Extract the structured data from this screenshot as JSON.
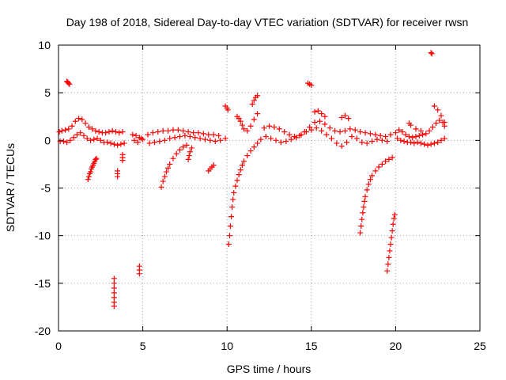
{
  "chart_data": {
    "type": "scatter",
    "title": "Day 198 of 2018, Sidereal Day-to-day VTEC variation (SDTVAR) for receiver rwsn",
    "xlabel": "GPS time / hours",
    "ylabel": "SDTVAR / TECUs",
    "xlim": [
      0,
      25
    ],
    "ylim": [
      -20,
      10
    ],
    "x_ticks": [
      0,
      5,
      10,
      15,
      20,
      25
    ],
    "y_ticks": [
      -20,
      -15,
      -10,
      -5,
      0,
      5,
      10
    ],
    "x_tick_labels": [
      "0",
      "5",
      "10",
      "15",
      "20",
      "25"
    ],
    "y_tick_labels": [
      "-20",
      "-15",
      "-10",
      "-5",
      "0",
      "5",
      "10"
    ],
    "grid": true,
    "marker": "+",
    "series": [
      {
        "name": "SDTVAR",
        "color": "#ff0000",
        "points": [
          [
            0.05,
            0.9
          ],
          [
            0.2,
            1.0
          ],
          [
            0.4,
            1.1
          ],
          [
            0.6,
            1.2
          ],
          [
            0.8,
            1.5
          ],
          [
            1.0,
            2.0
          ],
          [
            1.2,
            2.3
          ],
          [
            1.4,
            2.2
          ],
          [
            1.6,
            1.8
          ],
          [
            1.8,
            1.4
          ],
          [
            2.0,
            1.2
          ],
          [
            2.2,
            1.0
          ],
          [
            2.4,
            0.9
          ],
          [
            2.6,
            0.8
          ],
          [
            2.8,
            0.8
          ],
          [
            3.0,
            0.9
          ],
          [
            3.2,
            1.0
          ],
          [
            3.4,
            0.9
          ],
          [
            3.6,
            0.8
          ],
          [
            3.8,
            0.9
          ],
          [
            0.1,
            -0.1
          ],
          [
            0.3,
            -0.1
          ],
          [
            0.5,
            -0.2
          ],
          [
            0.7,
            0.0
          ],
          [
            0.9,
            0.3
          ],
          [
            1.1,
            0.6
          ],
          [
            1.3,
            0.8
          ],
          [
            1.5,
            0.5
          ],
          [
            1.7,
            0.2
          ],
          [
            1.9,
            0.0
          ],
          [
            2.1,
            0.1
          ],
          [
            2.3,
            0.2
          ],
          [
            2.5,
            0.0
          ],
          [
            2.7,
            -0.2
          ],
          [
            2.9,
            -0.2
          ],
          [
            3.1,
            -0.3
          ],
          [
            3.3,
            -0.4
          ],
          [
            3.5,
            -0.5
          ],
          [
            3.7,
            -0.4
          ],
          [
            3.9,
            -0.3
          ],
          [
            0.5,
            6.2
          ],
          [
            0.55,
            6.1
          ],
          [
            0.6,
            6.0
          ],
          [
            0.65,
            5.9
          ],
          [
            1.75,
            -4.1
          ],
          [
            1.8,
            -3.8
          ],
          [
            1.85,
            -3.5
          ],
          [
            1.9,
            -3.3
          ],
          [
            1.95,
            -3.0
          ],
          [
            2.0,
            -2.8
          ],
          [
            2.05,
            -2.6
          ],
          [
            2.1,
            -2.4
          ],
          [
            2.15,
            -2.2
          ],
          [
            2.2,
            -2.0
          ],
          [
            2.25,
            -1.9
          ],
          [
            3.5,
            -3.2
          ],
          [
            3.5,
            -3.5
          ],
          [
            3.5,
            -3.8
          ],
          [
            3.8,
            -1.8
          ],
          [
            3.8,
            -2.1
          ],
          [
            3.8,
            -1.5
          ],
          [
            3.3,
            -14.5
          ],
          [
            3.3,
            -15.0
          ],
          [
            3.3,
            -15.5
          ],
          [
            3.3,
            -16.0
          ],
          [
            3.3,
            -16.5
          ],
          [
            3.3,
            -17.0
          ],
          [
            3.3,
            -17.4
          ],
          [
            4.8,
            -13.2
          ],
          [
            4.8,
            -13.6
          ],
          [
            4.8,
            -14.0
          ],
          [
            4.4,
            0.6
          ],
          [
            4.6,
            0.5
          ],
          [
            4.8,
            0.3
          ],
          [
            5.0,
            0.1
          ],
          [
            4.5,
            0.0
          ],
          [
            4.7,
            -0.2
          ],
          [
            4.9,
            0.2
          ],
          [
            5.3,
            0.6
          ],
          [
            5.6,
            0.8
          ],
          [
            5.9,
            0.9
          ],
          [
            6.2,
            1.0
          ],
          [
            6.5,
            1.0
          ],
          [
            6.8,
            1.1
          ],
          [
            7.1,
            1.1
          ],
          [
            7.4,
            1.0
          ],
          [
            7.7,
            0.9
          ],
          [
            8.0,
            0.8
          ],
          [
            8.3,
            0.8
          ],
          [
            8.6,
            0.7
          ],
          [
            8.9,
            0.6
          ],
          [
            9.2,
            0.6
          ],
          [
            9.5,
            0.5
          ],
          [
            5.4,
            -0.3
          ],
          [
            5.7,
            -0.2
          ],
          [
            6.0,
            -0.1
          ],
          [
            6.3,
            0.0
          ],
          [
            6.6,
            0.2
          ],
          [
            6.9,
            0.3
          ],
          [
            7.2,
            0.4
          ],
          [
            7.5,
            0.5
          ],
          [
            7.8,
            0.4
          ],
          [
            8.1,
            0.3
          ],
          [
            8.4,
            0.2
          ],
          [
            8.7,
            0.1
          ],
          [
            9.0,
            0.0
          ],
          [
            9.3,
            -0.1
          ],
          [
            9.6,
            0.0
          ],
          [
            9.9,
            0.2
          ],
          [
            6.1,
            -4.9
          ],
          [
            6.2,
            -4.3
          ],
          [
            6.3,
            -3.8
          ],
          [
            6.4,
            -3.3
          ],
          [
            6.5,
            -2.9
          ],
          [
            6.6,
            -2.5
          ],
          [
            6.8,
            -1.9
          ],
          [
            7.0,
            -1.4
          ],
          [
            7.2,
            -1.0
          ],
          [
            7.4,
            -0.7
          ],
          [
            7.6,
            -0.5
          ],
          [
            7.7,
            -2.0
          ],
          [
            7.75,
            -1.6
          ],
          [
            7.8,
            -1.2
          ],
          [
            7.9,
            -0.8
          ],
          [
            8.9,
            -3.2
          ],
          [
            9.0,
            -3.0
          ],
          [
            9.1,
            -2.8
          ],
          [
            9.2,
            -2.6
          ],
          [
            9.9,
            3.6
          ],
          [
            10.0,
            3.4
          ],
          [
            10.05,
            3.2
          ],
          [
            10.1,
            -10.9
          ],
          [
            10.15,
            -10.0
          ],
          [
            10.2,
            -9.0
          ],
          [
            10.25,
            -8.0
          ],
          [
            10.3,
            -7.0
          ],
          [
            10.35,
            -6.2
          ],
          [
            10.4,
            -5.5
          ],
          [
            10.5,
            -4.8
          ],
          [
            10.6,
            -4.2
          ],
          [
            10.7,
            -3.6
          ],
          [
            10.8,
            -3.1
          ],
          [
            10.9,
            -2.6
          ],
          [
            11.0,
            -2.2
          ],
          [
            11.2,
            -1.6
          ],
          [
            11.4,
            -1.1
          ],
          [
            11.6,
            -0.7
          ],
          [
            11.8,
            -0.3
          ],
          [
            12.0,
            0.1
          ],
          [
            10.6,
            2.5
          ],
          [
            10.7,
            2.3
          ],
          [
            10.8,
            2.0
          ],
          [
            10.9,
            1.6
          ],
          [
            11.0,
            1.2
          ],
          [
            11.2,
            1.0
          ],
          [
            11.4,
            1.5
          ],
          [
            11.6,
            2.2
          ],
          [
            11.8,
            2.8
          ],
          [
            11.5,
            3.8
          ],
          [
            11.6,
            4.2
          ],
          [
            11.7,
            4.5
          ],
          [
            11.8,
            4.7
          ],
          [
            12.2,
            1.3
          ],
          [
            12.5,
            1.5
          ],
          [
            12.8,
            1.4
          ],
          [
            13.1,
            1.2
          ],
          [
            13.4,
            0.9
          ],
          [
            13.7,
            0.6
          ],
          [
            14.0,
            0.4
          ],
          [
            14.3,
            0.5
          ],
          [
            14.6,
            0.9
          ],
          [
            14.9,
            1.4
          ],
          [
            15.2,
            1.9
          ],
          [
            15.5,
            2.0
          ],
          [
            15.8,
            1.7
          ],
          [
            16.1,
            1.3
          ],
          [
            16.4,
            1.0
          ],
          [
            16.7,
            0.9
          ],
          [
            17.0,
            1.0
          ],
          [
            17.3,
            1.2
          ],
          [
            17.6,
            1.1
          ],
          [
            17.9,
            0.9
          ],
          [
            18.2,
            0.8
          ],
          [
            18.5,
            0.7
          ],
          [
            18.8,
            0.6
          ],
          [
            19.1,
            0.5
          ],
          [
            19.4,
            0.4
          ],
          [
            19.7,
            0.6
          ],
          [
            12.3,
            0.4
          ],
          [
            12.6,
            0.2
          ],
          [
            12.9,
            0.0
          ],
          [
            13.2,
            -0.2
          ],
          [
            13.5,
            -0.1
          ],
          [
            13.8,
            0.1
          ],
          [
            14.1,
            0.3
          ],
          [
            14.4,
            0.6
          ],
          [
            14.7,
            0.9
          ],
          [
            15.0,
            1.1
          ],
          [
            15.3,
            1.3
          ],
          [
            15.6,
            1.0
          ],
          [
            15.9,
            0.6
          ],
          [
            16.2,
            0.2
          ],
          [
            16.5,
            -0.3
          ],
          [
            16.8,
            -0.6
          ],
          [
            17.1,
            -0.2
          ],
          [
            17.4,
            0.4
          ],
          [
            17.7,
            0.2
          ],
          [
            18.0,
            -0.2
          ],
          [
            18.3,
            -0.3
          ],
          [
            18.6,
            -0.1
          ],
          [
            18.9,
            0.1
          ],
          [
            19.2,
            0.0
          ],
          [
            19.5,
            -0.1
          ],
          [
            14.8,
            6.0
          ],
          [
            14.9,
            5.9
          ],
          [
            15.0,
            5.8
          ],
          [
            15.2,
            3.0
          ],
          [
            15.4,
            3.1
          ],
          [
            15.6,
            2.8
          ],
          [
            15.8,
            2.5
          ],
          [
            16.8,
            2.4
          ],
          [
            17.0,
            2.6
          ],
          [
            17.2,
            2.3
          ],
          [
            17.9,
            -9.7
          ],
          [
            17.95,
            -9.0
          ],
          [
            18.0,
            -8.3
          ],
          [
            18.05,
            -7.6
          ],
          [
            18.1,
            -7.0
          ],
          [
            18.15,
            -6.4
          ],
          [
            18.2,
            -5.9
          ],
          [
            18.3,
            -5.2
          ],
          [
            18.4,
            -4.6
          ],
          [
            18.5,
            -4.1
          ],
          [
            18.6,
            -3.7
          ],
          [
            18.8,
            -3.2
          ],
          [
            19.0,
            -2.8
          ],
          [
            19.2,
            -2.5
          ],
          [
            19.4,
            -2.2
          ],
          [
            19.6,
            -2.0
          ],
          [
            19.8,
            -1.8
          ],
          [
            19.5,
            -13.7
          ],
          [
            19.55,
            -13.0
          ],
          [
            19.6,
            -12.3
          ],
          [
            19.65,
            -11.6
          ],
          [
            19.7,
            -10.9
          ],
          [
            19.75,
            -10.2
          ],
          [
            19.8,
            -9.5
          ],
          [
            19.85,
            -8.8
          ],
          [
            19.9,
            -8.2
          ],
          [
            19.95,
            -7.8
          ],
          [
            20.0,
            0.8
          ],
          [
            20.2,
            1.1
          ],
          [
            20.4,
            0.9
          ],
          [
            20.6,
            0.6
          ],
          [
            20.8,
            0.4
          ],
          [
            21.0,
            0.3
          ],
          [
            21.2,
            0.4
          ],
          [
            21.4,
            0.5
          ],
          [
            21.6,
            0.6
          ],
          [
            21.8,
            0.7
          ],
          [
            22.0,
            1.0
          ],
          [
            22.2,
            1.4
          ],
          [
            22.4,
            1.8
          ],
          [
            22.6,
            2.1
          ],
          [
            22.8,
            1.9
          ],
          [
            22.9,
            1.5
          ],
          [
            20.1,
            0.2
          ],
          [
            20.3,
            0.0
          ],
          [
            20.5,
            -0.1
          ],
          [
            20.7,
            -0.2
          ],
          [
            20.9,
            -0.2
          ],
          [
            21.1,
            -0.3
          ],
          [
            21.3,
            -0.2
          ],
          [
            21.5,
            -0.3
          ],
          [
            21.7,
            -0.4
          ],
          [
            21.9,
            -0.5
          ],
          [
            22.1,
            -0.4
          ],
          [
            22.3,
            -0.3
          ],
          [
            22.5,
            -0.2
          ],
          [
            22.7,
            0.0
          ],
          [
            22.9,
            0.2
          ],
          [
            20.8,
            1.8
          ],
          [
            20.9,
            1.6
          ],
          [
            21.2,
            1.2
          ],
          [
            21.5,
            1.0
          ],
          [
            22.1,
            9.2
          ],
          [
            22.15,
            9.1
          ],
          [
            22.3,
            3.6
          ],
          [
            22.5,
            3.2
          ],
          [
            22.7,
            2.6
          ],
          [
            22.9,
            1.9
          ]
        ]
      }
    ]
  }
}
